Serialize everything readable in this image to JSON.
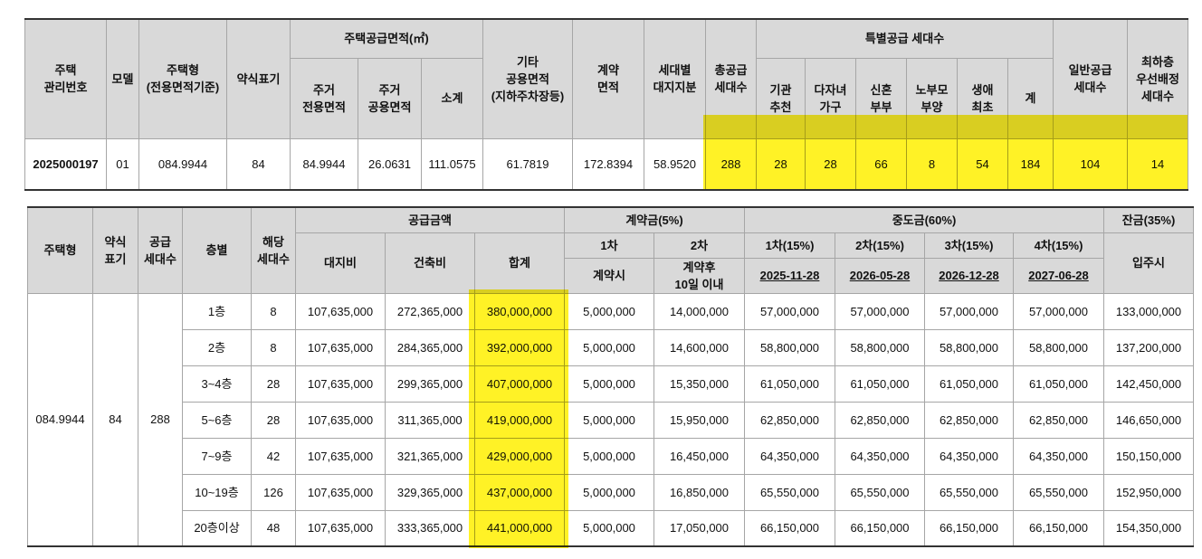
{
  "table1": {
    "header_groups": [
      "주택공급면적(㎡)",
      "특별공급 세대수"
    ],
    "headers": [
      "주택\n관리번호",
      "모델",
      "주택형\n(전용면적기준)",
      "약식표기",
      "주거\n전용면적",
      "주거\n공용면적",
      "소계",
      "기타\n공용면적\n(지하주차장등)",
      "계약\n면적",
      "세대별\n대지지분",
      "총공급\n세대수",
      "기관\n추천",
      "다자녀\n가구",
      "신혼\n부부",
      "노부모\n부양",
      "생애\n최초",
      "계",
      "일반공급\n세대수",
      "최하층\n우선배정\n세대수"
    ],
    "rows": [
      [
        "2025000197",
        "01",
        "084.9944",
        "84",
        "84.9944",
        "26.0631",
        "111.0575",
        "61.7819",
        "172.8394",
        "58.9520",
        "288",
        "28",
        "28",
        "66",
        "8",
        "54",
        "184",
        "104",
        "14"
      ]
    ]
  },
  "table2": {
    "header_groups": [
      "공급금액",
      "계약금(5%)",
      "중도금(60%)",
      "잔금(35%)"
    ],
    "headers": [
      "주택형",
      "약식\n표기",
      "공급\n세대수",
      "층별",
      "해당\n세대수",
      "대지비",
      "건축비",
      "합계"
    ],
    "contract_headers": [
      [
        "1차",
        "계약시"
      ],
      [
        "2차",
        "계약후\n10일 이내"
      ]
    ],
    "interim_headers": [
      [
        "1차(15%)",
        "2025-11-28"
      ],
      [
        "2차(15%)",
        "2026-05-28"
      ],
      [
        "3차(15%)",
        "2026-12-28"
      ],
      [
        "4차(15%)",
        "2027-06-28"
      ]
    ],
    "balance_header": "입주시",
    "group": [
      "084.9944",
      "84",
      "288"
    ],
    "rows": [
      [
        "1층",
        "8",
        "107,635,000",
        "272,365,000",
        "380,000,000",
        "5,000,000",
        "14,000,000",
        "57,000,000",
        "57,000,000",
        "57,000,000",
        "57,000,000",
        "133,000,000"
      ],
      [
        "2층",
        "8",
        "107,635,000",
        "284,365,000",
        "392,000,000",
        "5,000,000",
        "14,600,000",
        "58,800,000",
        "58,800,000",
        "58,800,000",
        "58,800,000",
        "137,200,000"
      ],
      [
        "3~4층",
        "28",
        "107,635,000",
        "299,365,000",
        "407,000,000",
        "5,000,000",
        "15,350,000",
        "61,050,000",
        "61,050,000",
        "61,050,000",
        "61,050,000",
        "142,450,000"
      ],
      [
        "5~6층",
        "28",
        "107,635,000",
        "311,365,000",
        "419,000,000",
        "5,000,000",
        "15,950,000",
        "62,850,000",
        "62,850,000",
        "62,850,000",
        "62,850,000",
        "146,650,000"
      ],
      [
        "7~9층",
        "42",
        "107,635,000",
        "321,365,000",
        "429,000,000",
        "5,000,000",
        "16,450,000",
        "64,350,000",
        "64,350,000",
        "64,350,000",
        "64,350,000",
        "150,150,000"
      ],
      [
        "10~19층",
        "126",
        "107,635,000",
        "329,365,000",
        "437,000,000",
        "5,000,000",
        "16,850,000",
        "65,550,000",
        "65,550,000",
        "65,550,000",
        "65,550,000",
        "152,950,000"
      ],
      [
        "20층이상",
        "48",
        "107,635,000",
        "333,365,000",
        "441,000,000",
        "5,000,000",
        "17,050,000",
        "66,150,000",
        "66,150,000",
        "66,150,000",
        "66,150,000",
        "154,350,000"
      ]
    ]
  }
}
